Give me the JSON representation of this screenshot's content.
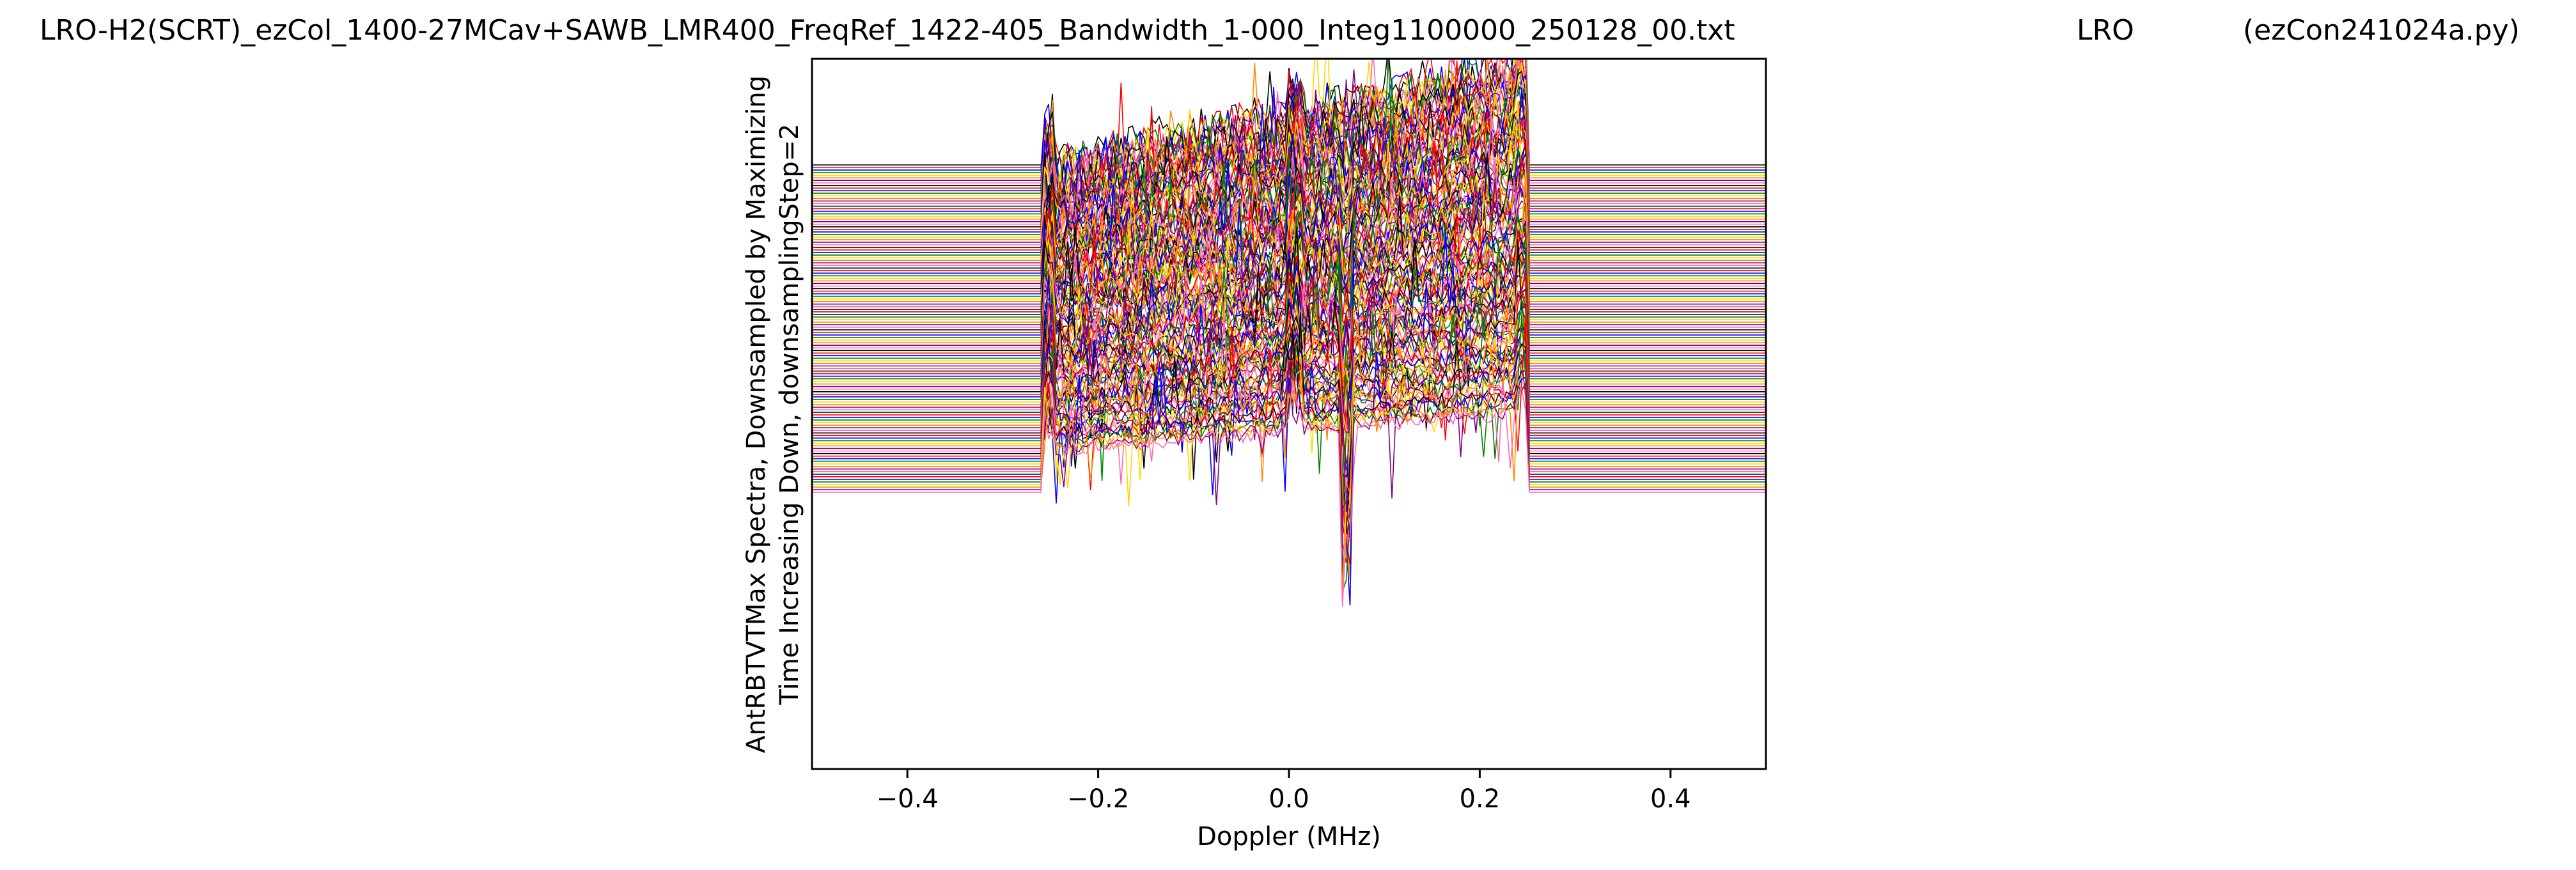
{
  "header": {
    "file_title": "LRO-H2(SCRT)_ezCol_1400-27MCav+SAWB_LMR400_FreqRef_1422-405_Bandwidth_1-000_Integ1100000_250128_00.txt",
    "station": "LRO",
    "program": "(ezCon241024a.py)"
  },
  "chart_data": {
    "type": "line",
    "title": "",
    "xlabel": "Doppler (MHz)",
    "ylabel_lines": [
      "AntRBTVTMax Spectra, Downsampled by Maximizing",
      "Time Increasing Down, downsamplingStep=2"
    ],
    "xlim": [
      -0.5,
      0.5
    ],
    "x_ticks": [
      -0.4,
      -0.2,
      0.0,
      0.2,
      0.4
    ],
    "x_tick_labels": [
      "−0.4",
      "−0.2",
      "0.0",
      "0.2",
      "0.4"
    ],
    "y_ticks_visible": false,
    "grid": false,
    "band_edges": [
      -0.258,
      0.252
    ],
    "series_count": 128,
    "color_cycle": [
      "#000000",
      "#ff0000",
      "#0000ff",
      "#008000",
      "#ffd700",
      "#ff8c00",
      "#800080",
      "#ff69b4"
    ],
    "baseline_range": [
      0.0,
      1.0
    ],
    "spectrum_top_range": [
      1.25,
      0.78
    ],
    "spectrum_bottom_range": [
      0.66,
      0.16
    ],
    "left_edge_spike": 0.18,
    "right_edge_step": 0.2,
    "center_dip_x": 0.062,
    "center_dip_depth": 0.6,
    "center_spike_x": 0.005,
    "noise_amplitude": 0.09
  }
}
